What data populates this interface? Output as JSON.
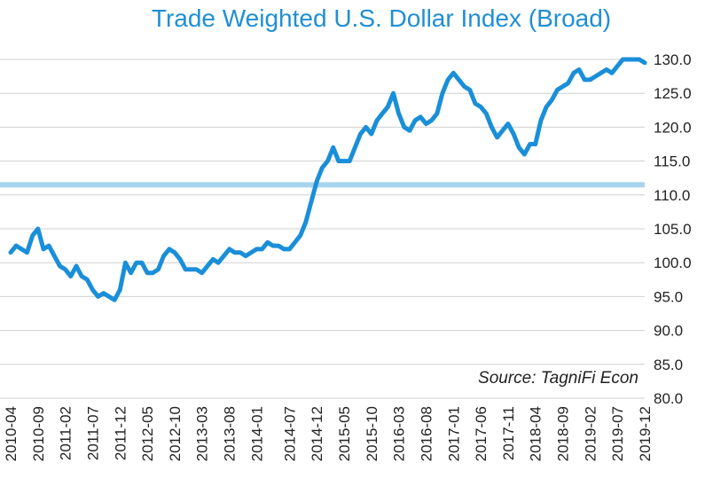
{
  "chart_data": {
    "type": "line",
    "title": "Trade Weighted U.S. Dollar Index (Broad)",
    "annotation": "Source: TagniFi Econ",
    "x": [
      "2010-04",
      "2010-05",
      "2010-06",
      "2010-07",
      "2010-08",
      "2010-09",
      "2010-10",
      "2010-11",
      "2010-12",
      "2011-01",
      "2011-02",
      "2011-03",
      "2011-04",
      "2011-05",
      "2011-06",
      "2011-07",
      "2011-08",
      "2011-09",
      "2011-10",
      "2011-11",
      "2011-12",
      "2012-01",
      "2012-02",
      "2012-03",
      "2012-04",
      "2012-05",
      "2012-06",
      "2012-07",
      "2012-08",
      "2012-09",
      "2012-10",
      "2012-11",
      "2012-12",
      "2013-01",
      "2013-02",
      "2013-03",
      "2013-04",
      "2013-05",
      "2013-06",
      "2013-07",
      "2013-08",
      "2013-09",
      "2013-10",
      "2013-11",
      "2013-12",
      "2014-01",
      "2014-02",
      "2014-03",
      "2014-04",
      "2014-05",
      "2014-06",
      "2014-07",
      "2014-08",
      "2014-09",
      "2014-10",
      "2014-11",
      "2014-12",
      "2015-01",
      "2015-02",
      "2015-03",
      "2015-04",
      "2015-05",
      "2015-06",
      "2015-07",
      "2015-08",
      "2015-09",
      "2015-10",
      "2015-11",
      "2015-12",
      "2016-01",
      "2016-02",
      "2016-03",
      "2016-04",
      "2016-05",
      "2016-06",
      "2016-07",
      "2016-08",
      "2016-09",
      "2016-10",
      "2016-11",
      "2016-12",
      "2017-01",
      "2017-02",
      "2017-03",
      "2017-04",
      "2017-05",
      "2017-06",
      "2017-07",
      "2017-08",
      "2017-09",
      "2017-10",
      "2017-11",
      "2017-12",
      "2018-01",
      "2018-02",
      "2018-03",
      "2018-04",
      "2018-05",
      "2018-06",
      "2018-07",
      "2018-08",
      "2018-09",
      "2018-10",
      "2018-11",
      "2018-12",
      "2019-01",
      "2019-02",
      "2019-03",
      "2019-04",
      "2019-05",
      "2019-06",
      "2019-07",
      "2019-08",
      "2019-09",
      "2019-10",
      "2019-11",
      "2019-12"
    ],
    "series": [
      {
        "name": "Trade Weighted U.S. Dollar Index (Broad)",
        "color": "#1a8fd8",
        "values": [
          101.5,
          102.5,
          102,
          101.5,
          104,
          105,
          102,
          102.5,
          101,
          99.5,
          99,
          98,
          99.5,
          98,
          97.5,
          96,
          95,
          95.5,
          95,
          94.5,
          96,
          100,
          98.5,
          100,
          100,
          98.5,
          98.5,
          99,
          101,
          102,
          101.5,
          100.5,
          99,
          99,
          99,
          98.5,
          99.5,
          100.5,
          100,
          101,
          102,
          101.5,
          101.5,
          101,
          101.5,
          102,
          102,
          103,
          102.5,
          102.5,
          102,
          102,
          103,
          104,
          106,
          109,
          112,
          114,
          115,
          117,
          115,
          115,
          115,
          117,
          119,
          120,
          119,
          121,
          122,
          123,
          125,
          122,
          120,
          119.5,
          121,
          121.5,
          120.5,
          121,
          122,
          125,
          127,
          128,
          127,
          126,
          125.5,
          123.5,
          123,
          122,
          120,
          118.5,
          119.5,
          120.5,
          119,
          117,
          116,
          117.5,
          117.5,
          121,
          123,
          124,
          125.5,
          126,
          126.5,
          128,
          128.5,
          127,
          127,
          127.5,
          128,
          128.5,
          128,
          129,
          130,
          130,
          130,
          130,
          129.5
        ]
      }
    ],
    "reference_line": {
      "value": 111.5,
      "color": "#a6d4ec"
    },
    "xticks": [
      "2010-04",
      "2010-09",
      "2011-02",
      "2011-07",
      "2011-12",
      "2012-05",
      "2012-10",
      "2013-03",
      "2013-08",
      "2014-01",
      "2014-07",
      "2014-12",
      "2015-05",
      "2015-10",
      "2016-03",
      "2016-08",
      "2017-01",
      "2017-06",
      "2017-11",
      "2018-04",
      "2018-09",
      "2019-02",
      "2019-07",
      "2019-12"
    ],
    "ylim": [
      80,
      130
    ],
    "yticks": [
      {
        "value": 80,
        "label": "80.0"
      },
      {
        "value": 85,
        "label": "85.0"
      },
      {
        "value": 90,
        "label": "90.0"
      },
      {
        "value": 95,
        "label": "95.0"
      },
      {
        "value": 100,
        "label": "100.0"
      },
      {
        "value": 105,
        "label": "105.0"
      },
      {
        "value": 110,
        "label": "110.0"
      },
      {
        "value": 115,
        "label": "115.0"
      },
      {
        "value": 120,
        "label": "120.0"
      },
      {
        "value": 125,
        "label": "125.0"
      },
      {
        "value": 130,
        "label": "130.0"
      }
    ],
    "grid": true
  }
}
